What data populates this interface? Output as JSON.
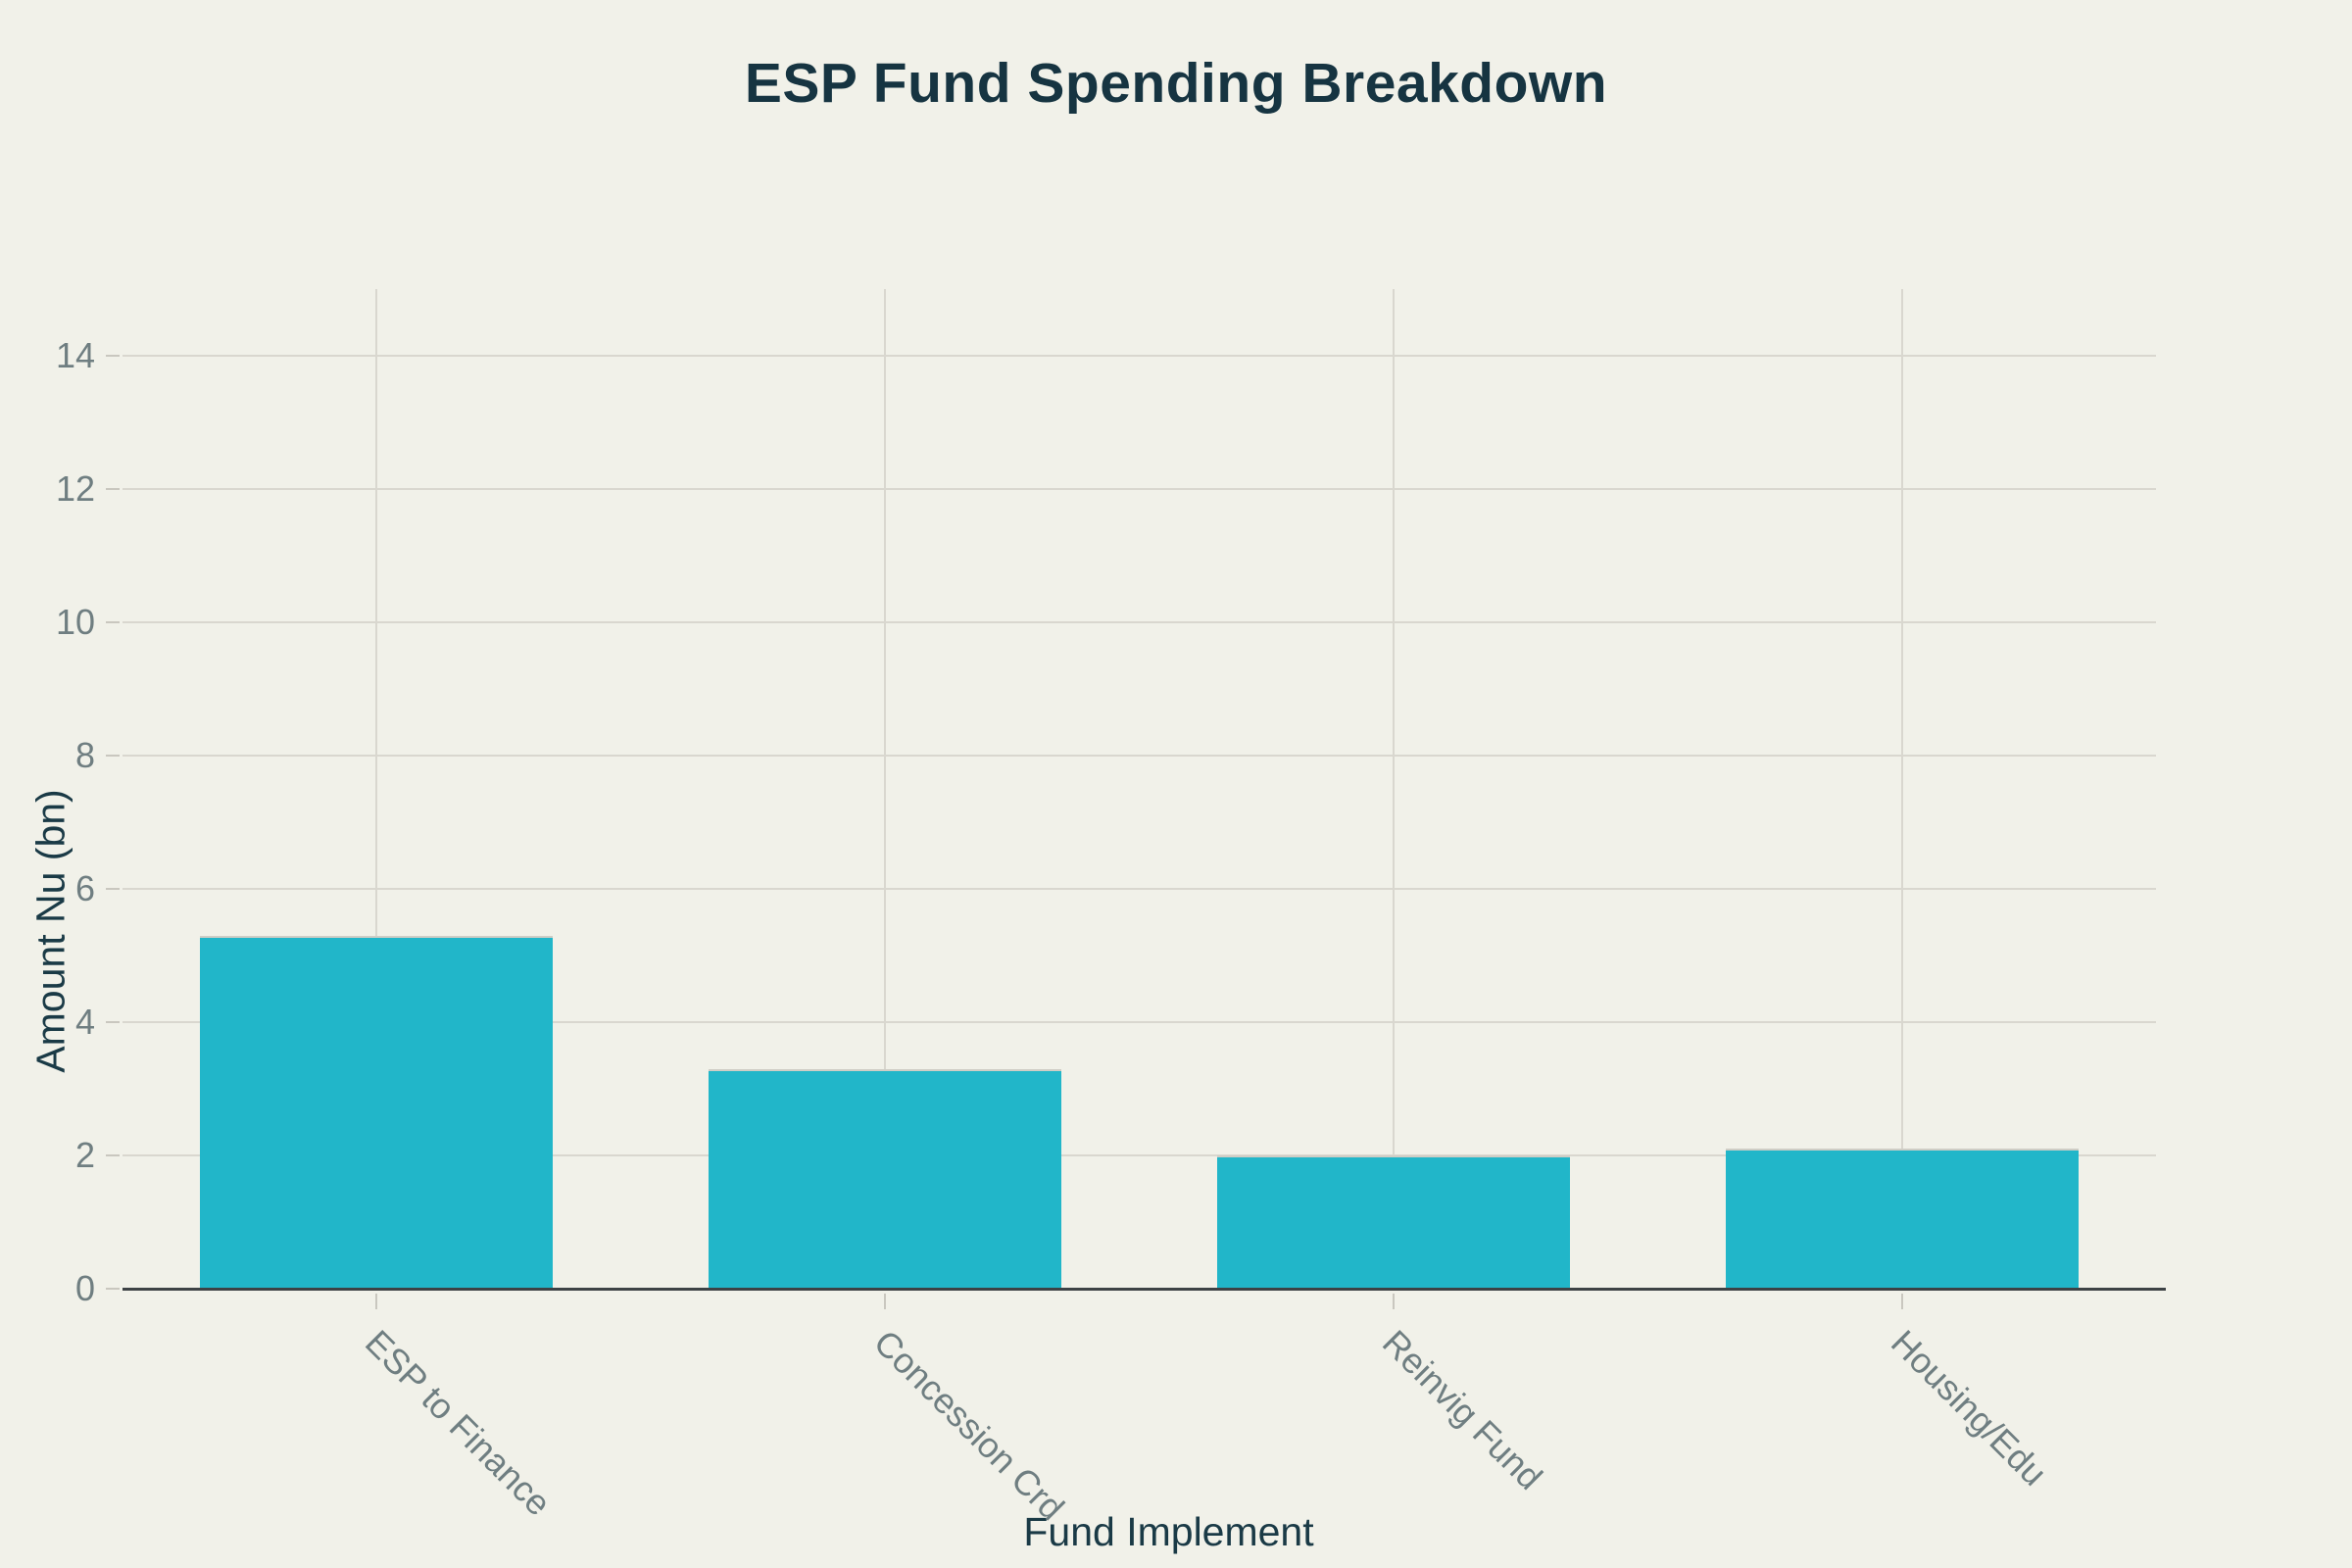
{
  "chart_data": {
    "type": "bar",
    "title": "ESP Fund Spending Breakdown",
    "xlabel": "Fund Implement",
    "ylabel": "Amount Nu (bn)",
    "categories": [
      "ESP to Finance",
      "Concession Crd",
      "Reinvig Fund",
      "Housing/Edu"
    ],
    "values": [
      5.3,
      3.3,
      2.0,
      2.1
    ],
    "ylim": [
      0,
      15
    ],
    "yticks": [
      0,
      2,
      4,
      6,
      8,
      10,
      12,
      14
    ],
    "grid": true,
    "legend": "none",
    "tick_angle_deg": 45
  },
  "colors": {
    "background": "#f1f1e9",
    "bar": "#21b6c9",
    "bar_top_edge": "#cfcdc5",
    "gridline": "#d9d7cf",
    "axis_line": "#3d4245",
    "tick_mark": "#c9c7bf",
    "tick_label": "#6f7e81",
    "title_text": "#163441",
    "axis_title_text": "#1a3a46"
  }
}
